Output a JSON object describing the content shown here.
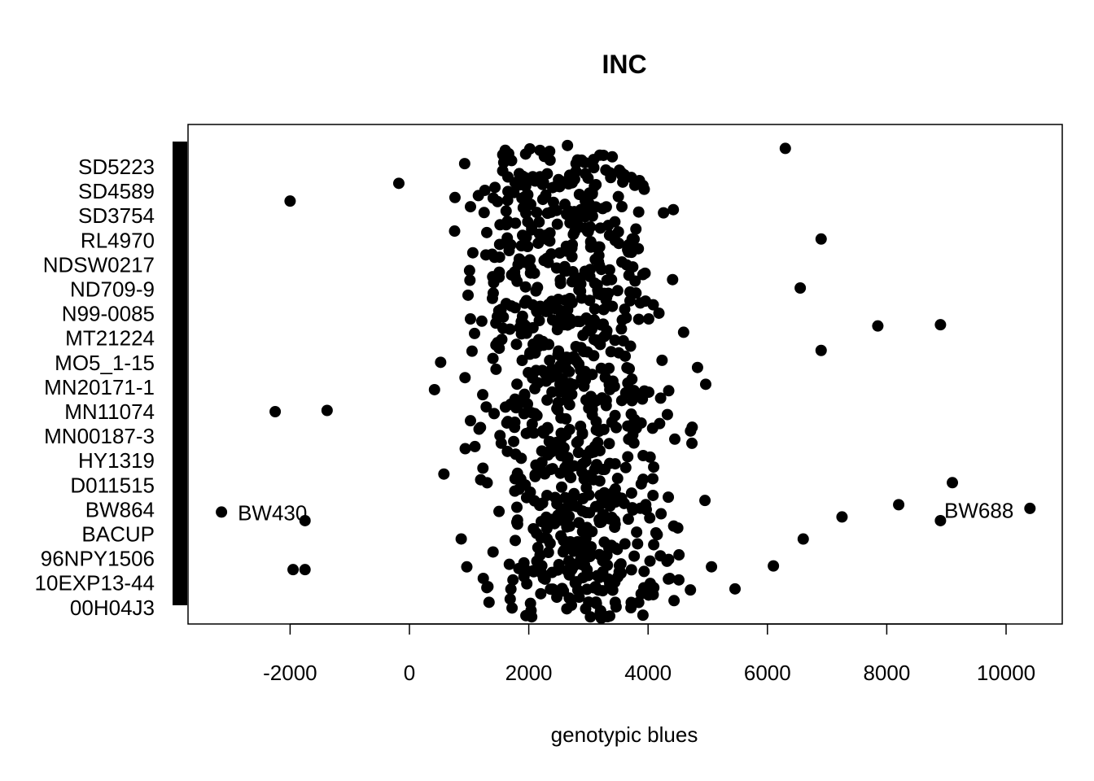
{
  "chart_data": {
    "type": "scatter",
    "title": "INC",
    "xlabel": "genotypic blues",
    "ylabel": "",
    "xlim": [
      -3700,
      11000
    ],
    "grid": false,
    "legend": "none",
    "x_ticks": [
      "-2000",
      "0",
      "2000",
      "4000",
      "6000",
      "8000",
      "10000"
    ],
    "x_tick_values": [
      -2000,
      0,
      2000,
      4000,
      6000,
      8000,
      10000
    ],
    "categories": [
      "SD5223",
      "SD4589",
      "SD3754",
      "RL4970",
      "NDSW0217",
      "ND709-9",
      "N99-0085",
      "MT21224",
      "MO5_1-15",
      "MN20171-1",
      "MN11074",
      "MN00187-3",
      "HY1319",
      "D011515",
      "BW864",
      "BACUP",
      "96NPY1506",
      "10EXP13-44",
      "00H04J3"
    ],
    "annotations": [
      {
        "text": "BW430",
        "x": -3150,
        "y_rank": 14.1
      },
      {
        "text": "BW688",
        "x": 10400,
        "y_rank": 14.0
      }
    ],
    "point_color": "#000000",
    "highlight_points": [
      {
        "x": -3150,
        "y_rank": 14.1
      },
      {
        "x": 10400,
        "y_rank": 13.95
      },
      {
        "x": -2000,
        "y_rank": 1.4
      },
      {
        "x": -2250,
        "y_rank": 10.0
      },
      {
        "x": -1950,
        "y_rank": 16.45
      },
      {
        "x": -1750,
        "y_rank": 16.45
      },
      {
        "x": -1750,
        "y_rank": 14.45
      },
      {
        "x": -1380,
        "y_rank": 9.95
      },
      {
        "x": 6900,
        "y_rank": 2.95
      },
      {
        "x": 6550,
        "y_rank": 4.95
      },
      {
        "x": 7850,
        "y_rank": 6.5
      },
      {
        "x": 8900,
        "y_rank": 6.45
      },
      {
        "x": 6900,
        "y_rank": 7.5
      },
      {
        "x": 9100,
        "y_rank": 12.9
      },
      {
        "x": 8200,
        "y_rank": 13.8
      },
      {
        "x": 7250,
        "y_rank": 14.3
      },
      {
        "x": 8900,
        "y_rank": 14.45
      },
      {
        "x": 6600,
        "y_rank": 15.2
      },
      {
        "x": 6300,
        "y_rank": -0.75
      },
      {
        "x": 6100,
        "y_rank": 16.3
      }
    ]
  }
}
